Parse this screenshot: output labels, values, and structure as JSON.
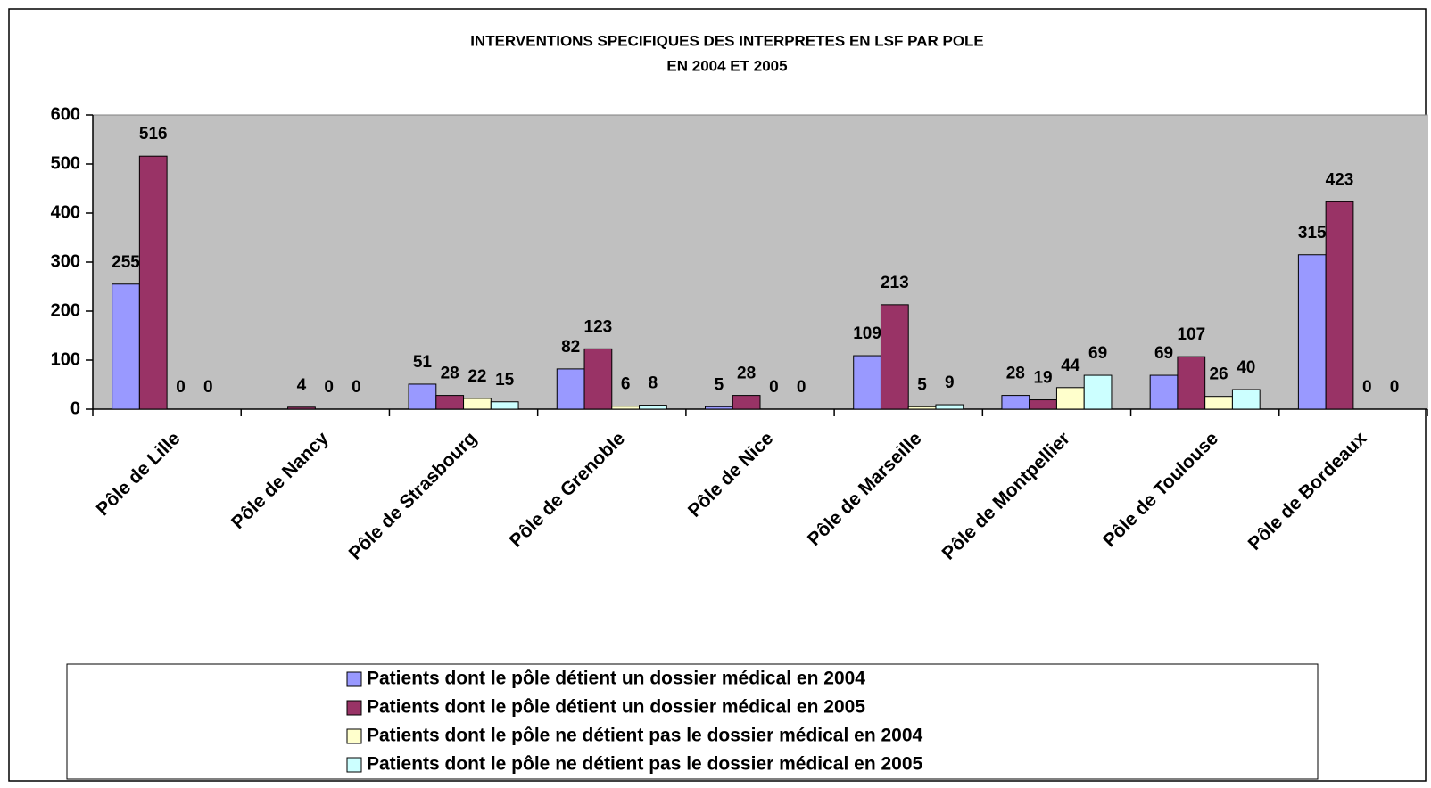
{
  "chart_data": {
    "type": "bar",
    "title": [
      "INTERVENTIONS SPECIFIQUES DES INTERPRETES EN LSF PAR POLE",
      "EN 2004 ET 2005"
    ],
    "categories": [
      "Pôle de Lille",
      "Pôle de Nancy",
      "Pôle de Strasbourg",
      "Pôle de Grenoble",
      "Pôle de Nice",
      "Pôle de Marseille",
      "Pôle de Montpellier",
      "Pôle de Toulouse",
      "Pôle de Bordeaux"
    ],
    "series": [
      {
        "name": "Patients dont le pôle détient un dossier médical en 2004",
        "color": "#9999ff",
        "values": [
          255,
          null,
          51,
          82,
          5,
          109,
          28,
          69,
          315
        ]
      },
      {
        "name": "Patients dont le pôle détient un dossier médical en 2005",
        "color": "#993366",
        "values": [
          516,
          4,
          28,
          123,
          28,
          213,
          19,
          107,
          423
        ]
      },
      {
        "name": "Patients dont le pôle ne détient pas le dossier médical en 2004",
        "color": "#ffffcc",
        "values": [
          0,
          0,
          22,
          6,
          0,
          5,
          44,
          26,
          0
        ]
      },
      {
        "name": "Patients dont le pôle ne détient pas le dossier médical en 2005",
        "color": "#ccffff",
        "values": [
          0,
          0,
          15,
          8,
          0,
          9,
          69,
          40,
          0
        ]
      }
    ],
    "ylim": [
      0,
      600
    ],
    "yticks": [
      0,
      100,
      200,
      300,
      400,
      500,
      600
    ],
    "plot_background": "#c0c0c0"
  }
}
